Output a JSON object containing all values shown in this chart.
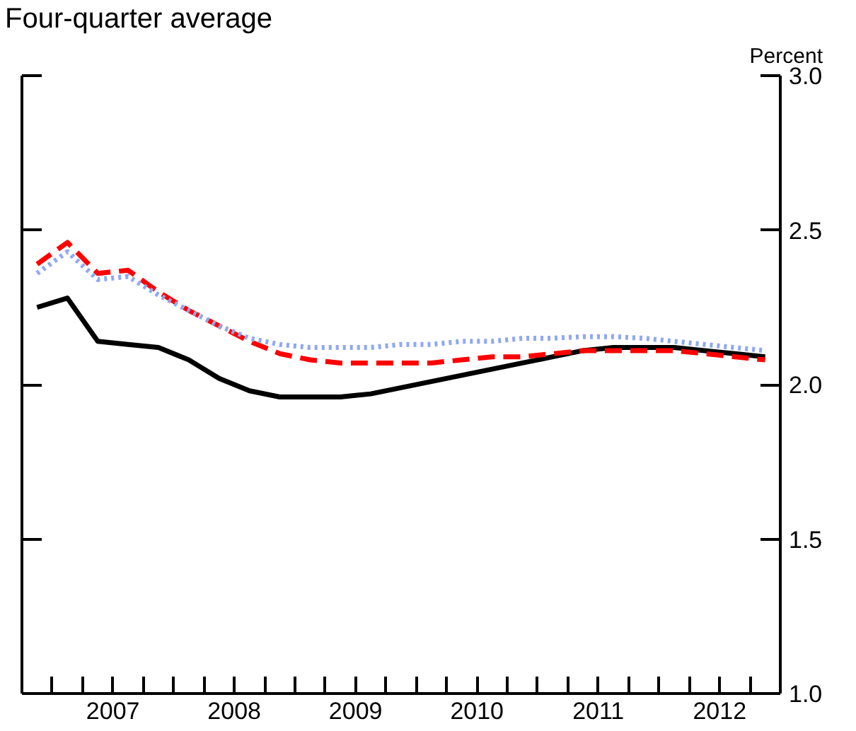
{
  "chart_data": {
    "type": "line",
    "title": "Four-quarter average",
    "ylabel": "Percent",
    "x": [
      2006.875,
      2007.125,
      2007.375,
      2007.625,
      2007.875,
      2008.125,
      2008.375,
      2008.625,
      2008.875,
      2009.125,
      2009.375,
      2009.625,
      2009.875,
      2010.125,
      2010.375,
      2010.625,
      2010.875,
      2011.125,
      2011.375,
      2011.625,
      2011.875,
      2012.125,
      2012.375,
      2012.625,
      2012.875
    ],
    "series": [
      {
        "color": "#000000",
        "line_style": "solid",
        "values": [
          2.25,
          2.28,
          2.14,
          2.13,
          2.12,
          2.08,
          2.02,
          1.98,
          1.96,
          1.96,
          1.96,
          1.97,
          1.99,
          2.01,
          2.03,
          2.05,
          2.07,
          2.09,
          2.11,
          2.12,
          2.12,
          2.12,
          2.11,
          2.1,
          2.09
        ]
      },
      {
        "color": "#ff0000",
        "line_style": "dashed",
        "values": [
          2.39,
          2.46,
          2.36,
          2.37,
          2.3,
          2.24,
          2.19,
          2.14,
          2.1,
          2.08,
          2.07,
          2.07,
          2.07,
          2.07,
          2.08,
          2.09,
          2.09,
          2.1,
          2.11,
          2.11,
          2.11,
          2.11,
          2.1,
          2.09,
          2.08
        ]
      },
      {
        "color": "#8fa8f0",
        "line_style": "dotted",
        "values": [
          2.36,
          2.43,
          2.34,
          2.35,
          2.29,
          2.24,
          2.19,
          2.15,
          2.13,
          2.12,
          2.12,
          2.12,
          2.13,
          2.13,
          2.14,
          2.14,
          2.15,
          2.15,
          2.155,
          2.155,
          2.15,
          2.14,
          2.13,
          2.12,
          2.11
        ]
      }
    ],
    "xlim": [
      2006.75,
      2013.0
    ],
    "xticks": [
      {
        "value": 2007,
        "label": null
      },
      {
        "value": 2007.25,
        "label": null
      },
      {
        "value": 2007.5,
        "label": "2007"
      },
      {
        "value": 2007.75,
        "label": null
      },
      {
        "value": 2008,
        "label": null
      },
      {
        "value": 2008.25,
        "label": null
      },
      {
        "value": 2008.5,
        "label": "2008"
      },
      {
        "value": 2008.75,
        "label": null
      },
      {
        "value": 2009,
        "label": null
      },
      {
        "value": 2009.25,
        "label": null
      },
      {
        "value": 2009.5,
        "label": "2009"
      },
      {
        "value": 2009.75,
        "label": null
      },
      {
        "value": 2010,
        "label": null
      },
      {
        "value": 2010.25,
        "label": null
      },
      {
        "value": 2010.5,
        "label": "2010"
      },
      {
        "value": 2010.75,
        "label": null
      },
      {
        "value": 2011,
        "label": null
      },
      {
        "value": 2011.25,
        "label": null
      },
      {
        "value": 2011.5,
        "label": "2011"
      },
      {
        "value": 2011.75,
        "label": null
      },
      {
        "value": 2012,
        "label": null
      },
      {
        "value": 2012.25,
        "label": null
      },
      {
        "value": 2012.5,
        "label": "2012"
      },
      {
        "value": 2012.75,
        "label": null
      }
    ],
    "ylim": [
      1.0,
      3.0
    ],
    "yticks": [
      {
        "value": 1.0,
        "label": "1.0"
      },
      {
        "value": 1.5,
        "label": "1.5"
      },
      {
        "value": 2.0,
        "label": "2.0"
      },
      {
        "value": 2.5,
        "label": "2.5"
      },
      {
        "value": 3.0,
        "label": "3.0"
      }
    ],
    "grid": false
  }
}
